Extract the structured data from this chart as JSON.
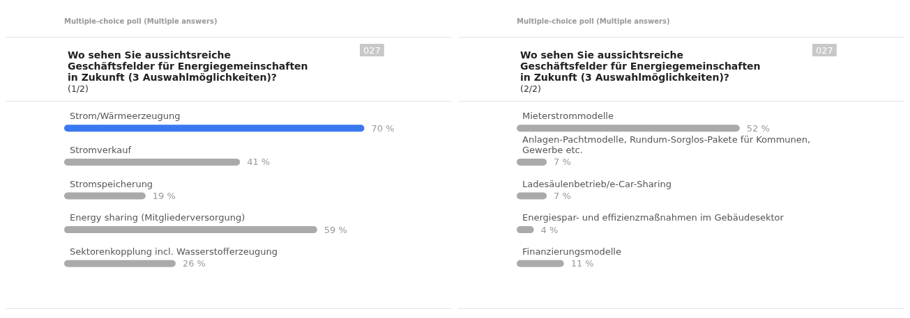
{
  "chart_data": [
    {
      "type": "bar",
      "orientation": "horizontal",
      "title": "Wo sehen Sie aussichtsreiche Geschäftsfelder für Energiegemeinschaften in Zukunft (3 Auswahlmöglichkeiten)?",
      "subtitle": "(1/2)",
      "annotations": [
        "Multiple-choice poll (Multiple answers)",
        "027"
      ],
      "categories": [
        "Strom/Wärmeerzeugung",
        "Stromverkauf",
        "Stromspeicherung",
        "Energy sharing (Mitgliederversorgung)",
        "Sektorenkopplung incl. Wasserstofferzeugung"
      ],
      "values": [
        70,
        41,
        19,
        59,
        26
      ],
      "colors": [
        "#3a78f0",
        "#aaaaaa",
        "#aaaaaa",
        "#aaaaaa",
        "#aaaaaa"
      ],
      "value_labels": [
        "70 %",
        "41 %",
        "19 %",
        "59 %",
        "26 %"
      ]
    },
    {
      "type": "bar",
      "orientation": "horizontal",
      "title": "Wo sehen Sie aussichtsreiche Geschäftsfelder für Energiegemeinschaften in Zukunft (3 Auswahlmöglichkeiten)?",
      "subtitle": "(2/2)",
      "annotations": [
        "Multiple-choice poll (Multiple answers)",
        "027"
      ],
      "categories": [
        "Mieterstrommodelle",
        "Anlagen-Pachtmodelle, Rundum-Sorglos-Pakete für Kommunen, Gewerbe etc.",
        "Ladesäulenbetrieb/e-Car-Sharing",
        "Energiespar- und effizienzmaßnahmen im Gebäudesektor",
        "Finanzierungsmodelle"
      ],
      "values": [
        52,
        7,
        7,
        4,
        11
      ],
      "colors": [
        "#aaaaaa",
        "#aaaaaa",
        "#aaaaaa",
        "#aaaaaa",
        "#aaaaaa"
      ],
      "value_labels": [
        "52 %",
        "7 %",
        "7 %",
        "4 %",
        "11 %"
      ]
    }
  ]
}
